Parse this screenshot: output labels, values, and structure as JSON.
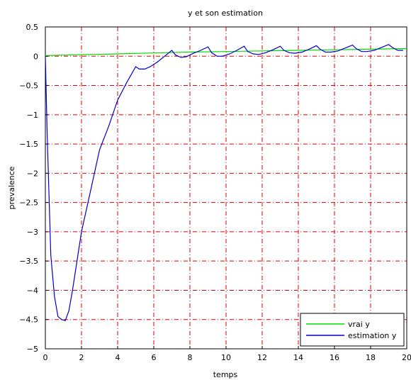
{
  "chart_data": {
    "type": "line",
    "title": "y et son estimation",
    "xlabel": "temps",
    "ylabel": "prevalence",
    "xlim": [
      0,
      20
    ],
    "ylim": [
      -5,
      0.5
    ],
    "xticks": [
      0,
      2,
      4,
      6,
      8,
      10,
      12,
      14,
      16,
      18,
      20
    ],
    "yticks": [
      0.5,
      0,
      -0.5,
      -1,
      -1.5,
      -2,
      -2.5,
      -3,
      -3.5,
      -4,
      -4.5,
      -5
    ],
    "ytick_labels": [
      "0.5",
      "0",
      "−0.5",
      "−1",
      "−1.5",
      "−2",
      "−2.5",
      "−3",
      "−3.5",
      "−4",
      "−4.5",
      "−5"
    ],
    "grid": true,
    "grid_color": "#e00000",
    "legend_position": "bottom-right",
    "series": [
      {
        "name": "vrai y",
        "color": "#00dd00",
        "x": [
          0,
          2,
          4,
          6,
          8,
          10,
          12,
          14,
          16,
          18,
          20
        ],
        "y": [
          0.01,
          0.025,
          0.04,
          0.055,
          0.07,
          0.08,
          0.09,
          0.1,
          0.11,
          0.12,
          0.13
        ]
      },
      {
        "name": "estimation y",
        "color": "#0000cc",
        "x": [
          0,
          0.1,
          0.3,
          0.5,
          0.7,
          0.9,
          1.1,
          1.3,
          1.5,
          2.0,
          2.5,
          3.0,
          3.5,
          4.0,
          4.5,
          5.0,
          5.2,
          5.5,
          5.8,
          6.2,
          6.6,
          7.0,
          7.2,
          7.5,
          7.8,
          8.2,
          8.6,
          9.0,
          9.2,
          9.5,
          9.8,
          10.2,
          10.6,
          11.0,
          11.2,
          11.5,
          11.8,
          12.2,
          12.6,
          13.0,
          13.2,
          13.5,
          13.8,
          14.2,
          14.6,
          15.0,
          15.2,
          15.5,
          15.8,
          16.2,
          16.6,
          17.0,
          17.2,
          17.5,
          17.8,
          18.2,
          18.6,
          19.0,
          19.2,
          19.5,
          19.8
        ],
        "y": [
          0,
          -1.3,
          -3.4,
          -4.1,
          -4.45,
          -4.5,
          -4.52,
          -4.35,
          -4.0,
          -3.0,
          -2.3,
          -1.6,
          -1.2,
          -0.75,
          -0.45,
          -0.18,
          -0.22,
          -0.22,
          -0.18,
          -0.1,
          0.0,
          0.1,
          0.02,
          -0.02,
          -0.01,
          0.05,
          0.1,
          0.16,
          0.06,
          0.0,
          0.0,
          0.04,
          0.1,
          0.17,
          0.08,
          0.04,
          0.03,
          0.06,
          0.11,
          0.17,
          0.1,
          0.06,
          0.05,
          0.07,
          0.12,
          0.18,
          0.12,
          0.07,
          0.07,
          0.09,
          0.14,
          0.19,
          0.13,
          0.08,
          0.08,
          0.1,
          0.15,
          0.2,
          0.15,
          0.1,
          0.1
        ]
      }
    ]
  }
}
